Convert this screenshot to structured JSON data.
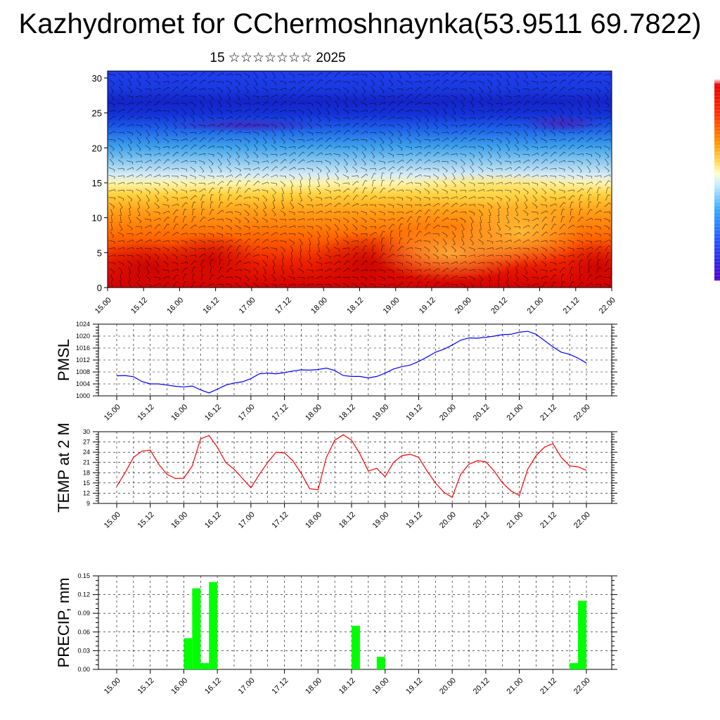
{
  "page": {
    "title": "Kazhydromet for CChermoshnaynka(53.9511 69.7822)",
    "subtitle": "15 ☆☆☆☆☆☆☆ 2025"
  },
  "time_axis": {
    "tick_labels": [
      "15.00",
      "15.12",
      "16.00",
      "16.12",
      "17.00",
      "17.12",
      "18.00",
      "18.12",
      "19.00",
      "19.12",
      "20.00",
      "20.12",
      "21.00",
      "21.12",
      "22.00"
    ]
  },
  "colors": {
    "pmsl_line": "#0000ff",
    "temp_line": "#ff0000",
    "precip_bar": "#00ff00",
    "wind_barb": "#000000",
    "colorbar_warm": "#cc0000",
    "colorbar_mid": "#ffff99",
    "colorbar_cold": "#3300cc"
  },
  "chart_data": [
    {
      "type": "heatmap",
      "name": "vertical-section",
      "xlabel": "",
      "ylabel": "",
      "ylim": [
        0,
        31
      ],
      "y_ticks": [
        0,
        5,
        10,
        15,
        20,
        25,
        30
      ],
      "x_ticks": [
        "15.00",
        "15.12",
        "16.00",
        "16.12",
        "17.00",
        "17.12",
        "18.00",
        "18.12",
        "19.00",
        "19.12",
        "20.00",
        "20.12",
        "21.00",
        "21.12",
        "22.00"
      ],
      "description_levels": {
        "layers_y": [
          0,
          5,
          10,
          14,
          16,
          18,
          22,
          25,
          30
        ],
        "note": "warm red near ground, orange to ~13, yellow ~14-16, light blue 16-19, blue above 20, dark blue 22-25"
      },
      "grid": false,
      "overlay": "wind barbs"
    },
    {
      "type": "line",
      "name": "PMSL",
      "ylabel": "PMSL",
      "ylim": [
        1000,
        1024
      ],
      "y_ticks": [
        1000,
        1004,
        1008,
        1012,
        1016,
        1020,
        1024
      ],
      "x_ticks": [
        "15.00",
        "15.12",
        "16.00",
        "16.12",
        "17.00",
        "17.12",
        "18.00",
        "18.12",
        "19.00",
        "19.12",
        "20.00",
        "20.12",
        "21.00",
        "21.12",
        "22.00"
      ],
      "grid": true,
      "x_hours": [
        0,
        3,
        6,
        9,
        12,
        15,
        18,
        21,
        24,
        27,
        30,
        33,
        36,
        39,
        42,
        45,
        48,
        51,
        54,
        57,
        60,
        63,
        66,
        69,
        72,
        75,
        78,
        81,
        84,
        87,
        90,
        93,
        96,
        99,
        102,
        105,
        108,
        111,
        114,
        117,
        120,
        123,
        126,
        129,
        132,
        135,
        138,
        141,
        144,
        147,
        150,
        153,
        156,
        159,
        162,
        165,
        168
      ],
      "values": [
        1006.7,
        1006.8,
        1006.4,
        1004.8,
        1004.0,
        1004.0,
        1003.6,
        1003.2,
        1003.0,
        1003.3,
        1002.0,
        1001.0,
        1002.2,
        1003.6,
        1004.3,
        1004.7,
        1005.8,
        1007.4,
        1007.6,
        1007.4,
        1007.8,
        1008.3,
        1008.7,
        1008.6,
        1008.8,
        1009.3,
        1008.5,
        1006.8,
        1006.5,
        1006.5,
        1006.0,
        1006.5,
        1007.6,
        1009.0,
        1009.8,
        1010.3,
        1011.5,
        1013.0,
        1014.6,
        1015.6,
        1017.0,
        1018.6,
        1019.4,
        1019.3,
        1019.6,
        1020.0,
        1020.5,
        1020.6,
        1021.3,
        1021.6,
        1020.6,
        1018.5,
        1016.4,
        1014.6,
        1013.9,
        1012.6,
        1011.0
      ],
      "series": [
        {
          "name": "PMSL"
        }
      ]
    },
    {
      "type": "line",
      "name": "TEMP at 2 M",
      "ylabel": "TEMP at 2 M",
      "ylim": [
        9,
        30
      ],
      "y_ticks": [
        9,
        12,
        15,
        18,
        21,
        24,
        27,
        30
      ],
      "x_ticks": [
        "15.00",
        "15.12",
        "16.00",
        "16.12",
        "17.00",
        "17.12",
        "18.00",
        "18.12",
        "19.00",
        "19.12",
        "20.00",
        "20.12",
        "21.00",
        "21.12",
        "22.00"
      ],
      "grid": true,
      "x_hours": [
        0,
        3,
        6,
        9,
        12,
        15,
        18,
        21,
        24,
        27,
        30,
        33,
        36,
        39,
        42,
        45,
        48,
        51,
        54,
        57,
        60,
        63,
        66,
        69,
        72,
        75,
        78,
        81,
        84,
        87,
        90,
        93,
        96,
        99,
        102,
        105,
        108,
        111,
        114,
        117,
        120,
        123,
        126,
        129,
        132,
        135,
        138,
        141,
        144,
        147,
        150,
        153,
        156,
        159,
        162,
        165,
        168
      ],
      "values": [
        14.0,
        18.0,
        22.5,
        24.3,
        24.6,
        20.5,
        17.5,
        16.3,
        16.4,
        20.0,
        27.9,
        28.9,
        25.5,
        21.0,
        19.0,
        16.3,
        13.6,
        17.5,
        21.0,
        24.0,
        23.8,
        21.5,
        17.8,
        13.3,
        13.0,
        22.5,
        27.5,
        29.1,
        27.5,
        23.5,
        18.5,
        19.3,
        16.8,
        21.0,
        23.0,
        23.4,
        22.5,
        18.5,
        15.0,
        12.3,
        10.8,
        17.5,
        20.5,
        21.5,
        21.2,
        18.5,
        15.0,
        12.7,
        11.3,
        19.0,
        23.0,
        25.5,
        26.5,
        22.5,
        20.0,
        19.7,
        18.7
      ],
      "series": [
        {
          "name": "TEMP at 2 M"
        }
      ]
    },
    {
      "type": "bar",
      "name": "PRECIP, mm",
      "ylabel": "PRECIP, mm",
      "ylim": [
        0,
        0.15
      ],
      "y_ticks": [
        "0.00",
        "0.03",
        "0.06",
        "0.09",
        "0.12",
        "0.15"
      ],
      "x_ticks": [
        "15.00",
        "15.12",
        "16.00",
        "16.12",
        "17.00",
        "17.12",
        "18.00",
        "18.12",
        "19.00",
        "19.12",
        "20.00",
        "20.12",
        "21.00",
        "21.12",
        "22.00"
      ],
      "grid": true,
      "bars": [
        {
          "start_hour": 24,
          "end_hour": 27,
          "value": 0.05
        },
        {
          "start_hour": 27,
          "end_hour": 30,
          "value": 0.13
        },
        {
          "start_hour": 30,
          "end_hour": 33,
          "value": 0.01
        },
        {
          "start_hour": 33,
          "end_hour": 36,
          "value": 0.14
        },
        {
          "start_hour": 84,
          "end_hour": 87,
          "value": 0.07
        },
        {
          "start_hour": 93,
          "end_hour": 96,
          "value": 0.02
        },
        {
          "start_hour": 162,
          "end_hour": 165,
          "value": 0.01
        },
        {
          "start_hour": 165,
          "end_hour": 168,
          "value": 0.11
        }
      ],
      "series": [
        {
          "name": "PRECIP, mm"
        }
      ]
    }
  ]
}
